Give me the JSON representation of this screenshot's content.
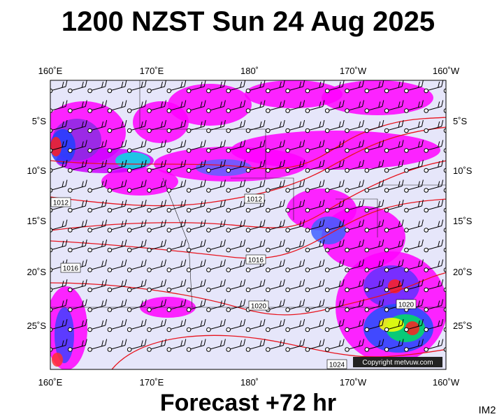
{
  "header": {
    "title": "1200 NZST Sun 24 Aug 2025"
  },
  "map": {
    "lon_labels": [
      "160˚E",
      "170˚E",
      "180˚",
      "170˚W",
      "160˚W"
    ],
    "lat_labels": [
      "5˚S",
      "10˚S",
      "15˚S",
      "20˚S",
      "25˚S"
    ],
    "isobar_labels": [
      "1012",
      "1012",
      "1016",
      "1016",
      "1020",
      "1020",
      "1024"
    ],
    "copyright": "Copyright metvuw.com"
  },
  "footer": {
    "forecast": "Forecast +72 hr",
    "id": "IM2"
  }
}
